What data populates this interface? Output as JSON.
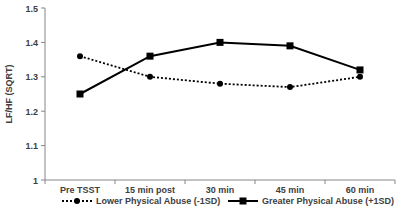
{
  "chart_data": {
    "type": "line",
    "y_label": "LF/HF (SQRT)",
    "categories": [
      "Pre TSST",
      "15 min post",
      "30 min",
      "45 min",
      "60 min"
    ],
    "series": [
      {
        "name": "Lower Physical Abuse (-1SD)",
        "color": "#000000",
        "marker": "circle",
        "line_style": "dotted",
        "values": [
          1.36,
          1.3,
          1.28,
          1.27,
          1.3
        ]
      },
      {
        "name": "Greater Physical Abuse (+1SD)",
        "color": "#000000",
        "marker": "square",
        "line_style": "solid",
        "values": [
          1.25,
          1.36,
          1.4,
          1.39,
          1.32
        ]
      }
    ],
    "ylim": [
      1,
      1.5
    ],
    "yticks": [
      1,
      1.1,
      1.2,
      1.3,
      1.4,
      1.5
    ],
    "grid": false,
    "legend": "bottom"
  }
}
